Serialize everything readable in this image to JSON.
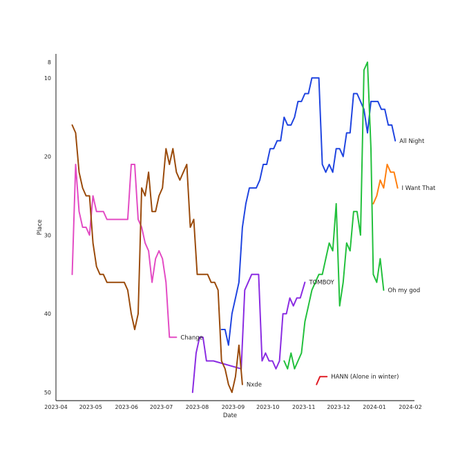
{
  "chart_data": {
    "type": "line",
    "title": "",
    "xlabel": "Date",
    "ylabel": "Place",
    "x_axis_type": "date",
    "xlim": [
      "2023-04-01",
      "2024-02-01"
    ],
    "ylim": [
      50,
      8
    ],
    "y_inverted": true,
    "grid": false,
    "legend": "none (series labeled at line ends)",
    "x_ticks": [
      "2023-04",
      "2023-05",
      "2023-06",
      "2023-07",
      "2023-08",
      "2023-09",
      "2023-10",
      "2023-11",
      "2023-12",
      "2024-01",
      "2024-02"
    ],
    "y_ticks": [
      8,
      10,
      20,
      30,
      40,
      50
    ],
    "series": [
      {
        "name": "All Night",
        "color": "#1f44e0",
        "points": [
          [
            "2023-08-22",
            42
          ],
          [
            "2023-08-25",
            42
          ],
          [
            "2023-08-28",
            44
          ],
          [
            "2023-08-31",
            40
          ],
          [
            "2023-09-03",
            38
          ],
          [
            "2023-09-06",
            36
          ],
          [
            "2023-09-09",
            29
          ],
          [
            "2023-09-12",
            26
          ],
          [
            "2023-09-15",
            24
          ],
          [
            "2023-09-18",
            24
          ],
          [
            "2023-09-21",
            24
          ],
          [
            "2023-09-24",
            23
          ],
          [
            "2023-09-27",
            21
          ],
          [
            "2023-09-30",
            21
          ],
          [
            "2023-10-03",
            19
          ],
          [
            "2023-10-06",
            19
          ],
          [
            "2023-10-09",
            18
          ],
          [
            "2023-10-12",
            18
          ],
          [
            "2023-10-15",
            15
          ],
          [
            "2023-10-18",
            16
          ],
          [
            "2023-10-21",
            16
          ],
          [
            "2023-10-24",
            15
          ],
          [
            "2023-10-27",
            13
          ],
          [
            "2023-10-30",
            13
          ],
          [
            "2023-11-02",
            12
          ],
          [
            "2023-11-05",
            12
          ],
          [
            "2023-11-08",
            10
          ],
          [
            "2023-11-11",
            10
          ],
          [
            "2023-11-14",
            10
          ],
          [
            "2023-11-17",
            21
          ],
          [
            "2023-11-20",
            22
          ],
          [
            "2023-11-23",
            21
          ],
          [
            "2023-11-26",
            22
          ],
          [
            "2023-11-29",
            19
          ],
          [
            "2023-12-02",
            19
          ],
          [
            "2023-12-05",
            20
          ],
          [
            "2023-12-08",
            17
          ],
          [
            "2023-12-11",
            17
          ],
          [
            "2023-12-14",
            12
          ],
          [
            "2023-12-17",
            12
          ],
          [
            "2023-12-20",
            13
          ],
          [
            "2023-12-23",
            14
          ],
          [
            "2023-12-26",
            17
          ],
          [
            "2023-12-29",
            13
          ],
          [
            "2024-01-01",
            13
          ],
          [
            "2024-01-04",
            13
          ],
          [
            "2024-01-07",
            14
          ],
          [
            "2024-01-10",
            14
          ],
          [
            "2024-01-13",
            16
          ],
          [
            "2024-01-16",
            16
          ],
          [
            "2024-01-19",
            18
          ]
        ]
      },
      {
        "name": "I Want That",
        "color": "#ff7f0e",
        "points": [
          [
            "2023-12-31",
            26
          ],
          [
            "2024-01-03",
            25
          ],
          [
            "2024-01-06",
            23
          ],
          [
            "2024-01-09",
            24
          ],
          [
            "2024-01-12",
            21
          ],
          [
            "2024-01-15",
            22
          ],
          [
            "2024-01-18",
            22
          ],
          [
            "2024-01-21",
            24
          ]
        ]
      },
      {
        "name": "Oh my god",
        "color": "#22c03c",
        "points": [
          [
            "2023-10-15",
            46
          ],
          [
            "2023-10-18",
            47
          ],
          [
            "2023-10-21",
            45
          ],
          [
            "2023-10-24",
            47
          ],
          [
            "2023-10-27",
            46
          ],
          [
            "2023-10-30",
            45
          ],
          [
            "2023-11-02",
            41
          ],
          [
            "2023-11-05",
            39
          ],
          [
            "2023-11-08",
            37
          ],
          [
            "2023-11-11",
            36
          ],
          [
            "2023-11-14",
            35
          ],
          [
            "2023-11-17",
            35
          ],
          [
            "2023-11-20",
            33
          ],
          [
            "2023-11-23",
            31
          ],
          [
            "2023-11-26",
            32
          ],
          [
            "2023-11-29",
            26
          ],
          [
            "2023-12-02",
            39
          ],
          [
            "2023-12-05",
            36
          ],
          [
            "2023-12-08",
            31
          ],
          [
            "2023-12-11",
            32
          ],
          [
            "2023-12-14",
            27
          ],
          [
            "2023-12-17",
            27
          ],
          [
            "2023-12-20",
            30
          ],
          [
            "2023-12-23",
            9
          ],
          [
            "2023-12-26",
            8
          ],
          [
            "2023-12-29",
            19
          ],
          [
            "2023-12-31",
            35
          ],
          [
            "2024-01-03",
            36
          ],
          [
            "2024-01-06",
            33
          ],
          [
            "2024-01-09",
            37
          ]
        ]
      },
      {
        "name": "TOMBOY",
        "color": "#8a2be2",
        "points": [
          [
            "2023-07-28",
            50
          ],
          [
            "2023-07-31",
            45
          ],
          [
            "2023-08-03",
            43
          ],
          [
            "2023-08-06",
            43
          ],
          [
            "2023-08-09",
            46
          ],
          [
            "2023-08-12",
            46
          ],
          [
            "2023-08-15",
            46
          ],
          [
            "2023-09-08",
            47
          ],
          [
            "2023-09-11",
            37
          ],
          [
            "2023-09-14",
            36
          ],
          [
            "2023-09-17",
            35
          ],
          [
            "2023-09-20",
            35
          ],
          [
            "2023-09-23",
            35
          ],
          [
            "2023-09-26",
            46
          ],
          [
            "2023-09-29",
            45
          ],
          [
            "2023-10-02",
            46
          ],
          [
            "2023-10-05",
            46
          ],
          [
            "2023-10-08",
            47
          ],
          [
            "2023-10-11",
            46
          ],
          [
            "2023-10-14",
            40
          ],
          [
            "2023-10-17",
            40
          ],
          [
            "2023-10-20",
            38
          ],
          [
            "2023-10-23",
            39
          ],
          [
            "2023-10-26",
            38
          ],
          [
            "2023-10-29",
            38
          ],
          [
            "2023-11-02",
            36
          ]
        ]
      },
      {
        "name": "Change",
        "color": "#e34bc4",
        "points": [
          [
            "2023-04-15",
            35
          ],
          [
            "2023-04-18",
            21
          ],
          [
            "2023-04-21",
            27
          ],
          [
            "2023-04-24",
            29
          ],
          [
            "2023-04-27",
            29
          ],
          [
            "2023-04-30",
            30
          ],
          [
            "2023-05-03",
            25
          ],
          [
            "2023-05-06",
            27
          ],
          [
            "2023-05-09",
            27
          ],
          [
            "2023-05-12",
            27
          ],
          [
            "2023-05-15",
            28
          ],
          [
            "2023-05-18",
            28
          ],
          [
            "2023-05-21",
            28
          ],
          [
            "2023-05-24",
            28
          ],
          [
            "2023-05-27",
            28
          ],
          [
            "2023-05-30",
            28
          ],
          [
            "2023-06-02",
            28
          ],
          [
            "2023-06-05",
            21
          ],
          [
            "2023-06-08",
            21
          ],
          [
            "2023-06-11",
            28
          ],
          [
            "2023-06-14",
            29
          ],
          [
            "2023-06-17",
            31
          ],
          [
            "2023-06-20",
            32
          ],
          [
            "2023-06-23",
            36
          ],
          [
            "2023-06-26",
            33
          ],
          [
            "2023-06-29",
            32
          ],
          [
            "2023-07-02",
            33
          ],
          [
            "2023-07-05",
            36
          ],
          [
            "2023-07-08",
            43
          ],
          [
            "2023-07-11",
            43
          ],
          [
            "2023-07-14",
            43
          ]
        ]
      },
      {
        "name": "Nxde",
        "color": "#9a4a0a",
        "points": [
          [
            "2023-04-15",
            16
          ],
          [
            "2023-04-18",
            17
          ],
          [
            "2023-04-21",
            22
          ],
          [
            "2023-04-24",
            24
          ],
          [
            "2023-04-27",
            25
          ],
          [
            "2023-04-30",
            25
          ],
          [
            "2023-05-03",
            31
          ],
          [
            "2023-05-06",
            34
          ],
          [
            "2023-05-09",
            35
          ],
          [
            "2023-05-12",
            35
          ],
          [
            "2023-05-15",
            36
          ],
          [
            "2023-05-18",
            36
          ],
          [
            "2023-05-21",
            36
          ],
          [
            "2023-05-24",
            36
          ],
          [
            "2023-05-27",
            36
          ],
          [
            "2023-05-30",
            36
          ],
          [
            "2023-06-02",
            37
          ],
          [
            "2023-06-05",
            40
          ],
          [
            "2023-06-08",
            42
          ],
          [
            "2023-06-11",
            40
          ],
          [
            "2023-06-14",
            24
          ],
          [
            "2023-06-17",
            25
          ],
          [
            "2023-06-20",
            22
          ],
          [
            "2023-06-23",
            27
          ],
          [
            "2023-06-26",
            27
          ],
          [
            "2023-06-29",
            25
          ],
          [
            "2023-07-02",
            24
          ],
          [
            "2023-07-05",
            19
          ],
          [
            "2023-07-08",
            21
          ],
          [
            "2023-07-11",
            19
          ],
          [
            "2023-07-14",
            22
          ],
          [
            "2023-07-17",
            23
          ],
          [
            "2023-07-20",
            22
          ],
          [
            "2023-07-23",
            21
          ],
          [
            "2023-07-26",
            29
          ],
          [
            "2023-07-29",
            28
          ],
          [
            "2023-08-01",
            35
          ],
          [
            "2023-08-04",
            35
          ],
          [
            "2023-08-07",
            35
          ],
          [
            "2023-08-10",
            35
          ],
          [
            "2023-08-13",
            36
          ],
          [
            "2023-08-16",
            36
          ],
          [
            "2023-08-19",
            37
          ],
          [
            "2023-08-22",
            46
          ],
          [
            "2023-08-25",
            47
          ],
          [
            "2023-08-28",
            49
          ],
          [
            "2023-08-31",
            50
          ],
          [
            "2023-09-03",
            48
          ],
          [
            "2023-09-06",
            44
          ],
          [
            "2023-09-09",
            49
          ]
        ]
      },
      {
        "name": "HANN (Alone in winter)",
        "color": "#e01b24",
        "points": [
          [
            "2023-11-12",
            49
          ],
          [
            "2023-11-15",
            48
          ],
          [
            "2023-11-18",
            48
          ],
          [
            "2023-11-21",
            48
          ]
        ]
      }
    ]
  }
}
